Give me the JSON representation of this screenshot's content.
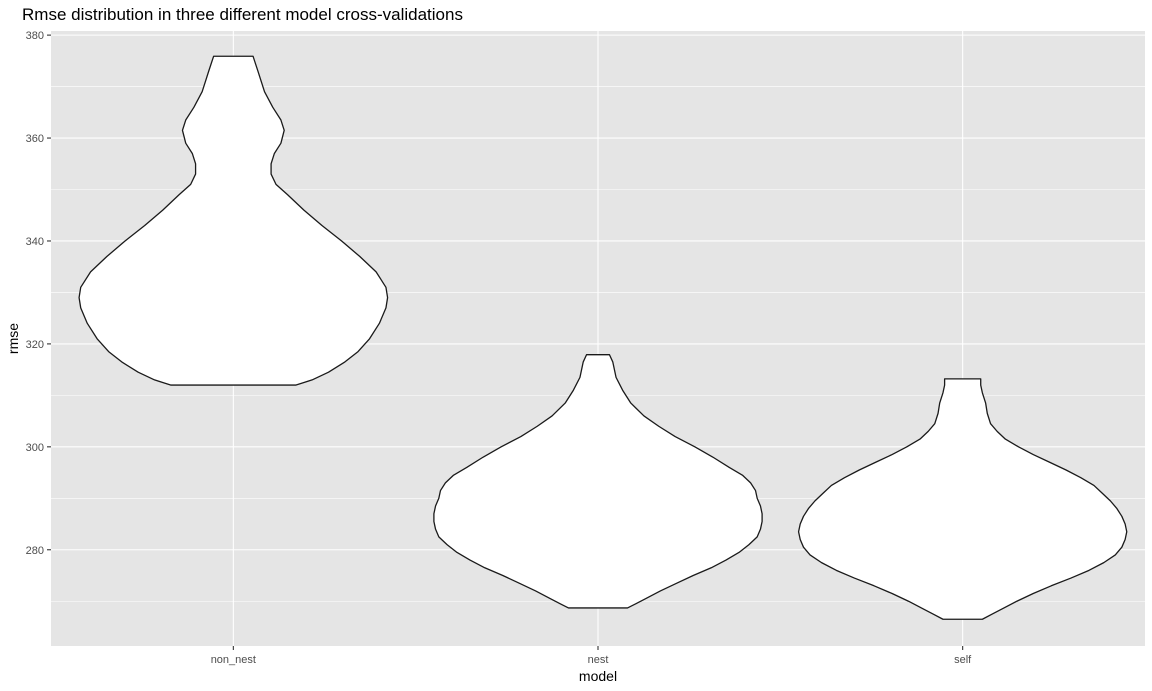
{
  "chart_data": {
    "type": "violin",
    "title": "Rmse distribution in three different model cross-validations",
    "xlabel": "model",
    "ylabel": "rmse",
    "categories": [
      "non_nest",
      "nest",
      "self"
    ],
    "ylim": [
      261.3,
      380.8
    ],
    "yticks": [
      280,
      300,
      320,
      340,
      360,
      380
    ],
    "grid": true,
    "background": "#e5e5e5",
    "violins": [
      {
        "category": "non_nest",
        "min": 312.0,
        "max": 375.9,
        "profile": [
          [
            312.0,
            0.38
          ],
          [
            313.0,
            0.48
          ],
          [
            314.5,
            0.58
          ],
          [
            316.5,
            0.68
          ],
          [
            318.5,
            0.76
          ],
          [
            321.0,
            0.83
          ],
          [
            324.0,
            0.89
          ],
          [
            327.0,
            0.93
          ],
          [
            329.0,
            0.94
          ],
          [
            331.0,
            0.93
          ],
          [
            334.0,
            0.87
          ],
          [
            337.0,
            0.77
          ],
          [
            340.0,
            0.66
          ],
          [
            343.0,
            0.54
          ],
          [
            346.0,
            0.43
          ],
          [
            349.0,
            0.33
          ],
          [
            351.0,
            0.26
          ],
          [
            353.0,
            0.23
          ],
          [
            355.0,
            0.23
          ],
          [
            357.0,
            0.25
          ],
          [
            359.0,
            0.29
          ],
          [
            361.5,
            0.31
          ],
          [
            363.5,
            0.29
          ],
          [
            366.0,
            0.24
          ],
          [
            369.0,
            0.19
          ],
          [
            371.0,
            0.17
          ],
          [
            373.0,
            0.15
          ],
          [
            375.9,
            0.12
          ]
        ]
      },
      {
        "category": "nest",
        "min": 268.7,
        "max": 317.9,
        "profile": [
          [
            268.7,
            0.18
          ],
          [
            269.5,
            0.23
          ],
          [
            270.5,
            0.29
          ],
          [
            272.0,
            0.38
          ],
          [
            273.5,
            0.48
          ],
          [
            275.0,
            0.58
          ],
          [
            276.5,
            0.69
          ],
          [
            278.0,
            0.78
          ],
          [
            279.5,
            0.86
          ],
          [
            281.0,
            0.92
          ],
          [
            282.5,
            0.97
          ],
          [
            284.0,
            0.99
          ],
          [
            285.5,
            1.0
          ],
          [
            287.0,
            1.0
          ],
          [
            288.5,
            0.99
          ],
          [
            290.0,
            0.97
          ],
          [
            291.5,
            0.96
          ],
          [
            293.0,
            0.93
          ],
          [
            294.5,
            0.88
          ],
          [
            296.0,
            0.8
          ],
          [
            298.0,
            0.7
          ],
          [
            300.0,
            0.59
          ],
          [
            302.0,
            0.47
          ],
          [
            304.0,
            0.37
          ],
          [
            306.0,
            0.28
          ],
          [
            308.5,
            0.2
          ],
          [
            311.0,
            0.15
          ],
          [
            313.5,
            0.11
          ],
          [
            315.0,
            0.1
          ],
          [
            316.5,
            0.09
          ],
          [
            317.9,
            0.07
          ]
        ]
      },
      {
        "category": "self",
        "min": 266.5,
        "max": 313.2,
        "profile": [
          [
            266.5,
            0.12
          ],
          [
            267.5,
            0.18
          ],
          [
            268.5,
            0.24
          ],
          [
            270.0,
            0.33
          ],
          [
            271.5,
            0.43
          ],
          [
            273.0,
            0.54
          ],
          [
            274.5,
            0.66
          ],
          [
            276.0,
            0.77
          ],
          [
            277.5,
            0.86
          ],
          [
            279.0,
            0.93
          ],
          [
            280.5,
            0.97
          ],
          [
            282.0,
            0.99
          ],
          [
            283.5,
            1.0
          ],
          [
            285.0,
            0.99
          ],
          [
            286.5,
            0.97
          ],
          [
            288.0,
            0.94
          ],
          [
            289.5,
            0.9
          ],
          [
            291.0,
            0.85
          ],
          [
            292.5,
            0.8
          ],
          [
            294.0,
            0.72
          ],
          [
            295.5,
            0.63
          ],
          [
            297.0,
            0.53
          ],
          [
            298.5,
            0.43
          ],
          [
            300.0,
            0.34
          ],
          [
            301.5,
            0.26
          ],
          [
            303.0,
            0.21
          ],
          [
            304.5,
            0.17
          ],
          [
            306.5,
            0.15
          ],
          [
            308.5,
            0.14
          ],
          [
            310.5,
            0.12
          ],
          [
            312.0,
            0.11
          ],
          [
            313.2,
            0.11
          ]
        ]
      }
    ]
  }
}
